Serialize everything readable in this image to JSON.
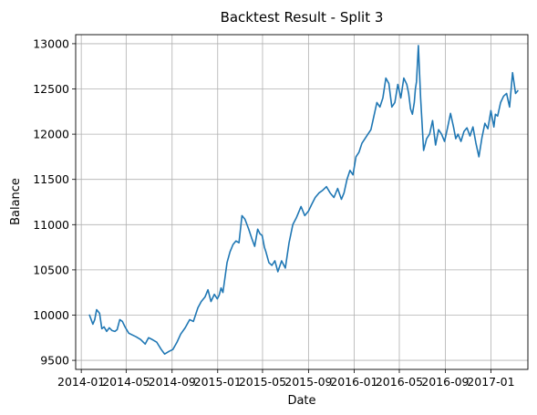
{
  "chart_data": {
    "type": "line",
    "title": "Backtest Result - Split 3",
    "xlabel": "Date",
    "ylabel": "Balance",
    "grid": true,
    "legend": "none",
    "xlim": [
      "2013-12-17",
      "2017-04-10"
    ],
    "ylim": [
      9400,
      13100
    ],
    "x_ticks": [
      "2014-01",
      "2014-05",
      "2014-09",
      "2015-01",
      "2015-05",
      "2015-09",
      "2016-01",
      "2016-05",
      "2016-09",
      "2017-01"
    ],
    "y_ticks": [
      9500,
      10000,
      10500,
      11000,
      11500,
      12000,
      12500,
      13000
    ],
    "series": [
      {
        "color": "#1f77b4",
        "x": [
          "2014-01-23",
          "2014-02-01",
          "2014-02-06",
          "2014-02-11",
          "2014-02-19",
          "2014-02-25",
          "2014-03-03",
          "2014-03-10",
          "2014-03-17",
          "2014-03-24",
          "2014-04-01",
          "2014-04-07",
          "2014-04-14",
          "2014-04-21",
          "2014-04-28",
          "2014-05-08",
          "2014-05-18",
          "2014-05-28",
          "2014-06-09",
          "2014-06-21",
          "2014-06-30",
          "2014-07-10",
          "2014-07-22",
          "2014-08-03",
          "2014-08-12",
          "2014-08-24",
          "2014-09-03",
          "2014-09-14",
          "2014-09-24",
          "2014-10-06",
          "2014-10-18",
          "2014-10-28",
          "2014-11-09",
          "2014-11-18",
          "2014-11-28",
          "2014-12-06",
          "2014-12-14",
          "2014-12-23",
          "2014-12-31",
          "2015-01-05",
          "2015-01-10",
          "2015-01-15",
          "2015-01-20",
          "2015-01-26",
          "2015-02-03",
          "2015-02-11",
          "2015-02-19",
          "2015-02-27",
          "2015-03-07",
          "2015-03-15",
          "2015-03-25",
          "2015-04-02",
          "2015-04-10",
          "2015-04-18",
          "2015-04-24",
          "2015-04-30",
          "2015-05-06",
          "2015-05-10",
          "2015-05-18",
          "2015-05-26",
          "2015-06-03",
          "2015-06-11",
          "2015-06-21",
          "2015-07-01",
          "2015-07-11",
          "2015-07-21",
          "2015-07-31",
          "2015-08-12",
          "2015-08-22",
          "2015-09-01",
          "2015-09-09",
          "2015-09-19",
          "2015-09-29",
          "2015-10-09",
          "2015-10-19",
          "2015-10-29",
          "2015-11-08",
          "2015-11-18",
          "2015-11-28",
          "2015-12-05",
          "2015-12-13",
          "2015-12-21",
          "2015-12-29",
          "2016-01-06",
          "2016-01-14",
          "2016-01-22",
          "2016-01-30",
          "2016-02-07",
          "2016-02-15",
          "2016-02-23",
          "2016-03-02",
          "2016-03-10",
          "2016-03-18",
          "2016-03-26",
          "2016-04-03",
          "2016-04-11",
          "2016-04-19",
          "2016-04-27",
          "2016-05-05",
          "2016-05-13",
          "2016-05-21",
          "2016-05-26",
          "2016-05-31",
          "2016-06-05",
          "2016-06-10",
          "2016-06-13",
          "2016-06-16",
          "2016-06-21",
          "2016-06-27",
          "2016-07-05",
          "2016-07-13",
          "2016-07-21",
          "2016-07-29",
          "2016-08-06",
          "2016-08-14",
          "2016-08-22",
          "2016-08-30",
          "2016-09-07",
          "2016-09-15",
          "2016-09-23",
          "2016-09-29",
          "2016-10-05",
          "2016-10-13",
          "2016-10-21",
          "2016-10-29",
          "2016-11-06",
          "2016-11-14",
          "2016-11-22",
          "2016-11-30",
          "2016-12-08",
          "2016-12-16",
          "2016-12-24",
          "2017-01-01",
          "2017-01-05",
          "2017-01-09",
          "2017-01-13",
          "2017-01-19",
          "2017-01-27",
          "2017-02-04",
          "2017-02-12",
          "2017-02-20",
          "2017-02-28",
          "2017-03-08",
          "2017-03-14"
        ],
        "values": [
          10000,
          9900,
          9950,
          10060,
          10020,
          9850,
          9870,
          9820,
          9860,
          9830,
          9820,
          9840,
          9950,
          9930,
          9870,
          9800,
          9780,
          9760,
          9730,
          9680,
          9750,
          9730,
          9700,
          9620,
          9570,
          9600,
          9620,
          9700,
          9790,
          9860,
          9950,
          9930,
          10080,
          10150,
          10200,
          10280,
          10150,
          10230,
          10180,
          10220,
          10300,
          10250,
          10400,
          10580,
          10700,
          10780,
          10820,
          10800,
          11100,
          11060,
          10950,
          10850,
          10760,
          10950,
          10900,
          10880,
          10750,
          10700,
          10580,
          10550,
          10600,
          10480,
          10600,
          10520,
          10800,
          11000,
          11080,
          11200,
          11100,
          11150,
          11220,
          11300,
          11350,
          11380,
          11420,
          11350,
          11300,
          11400,
          11280,
          11350,
          11500,
          11600,
          11550,
          11750,
          11800,
          11900,
          11950,
          12000,
          12050,
          12200,
          12350,
          12300,
          12400,
          12620,
          12560,
          12300,
          12350,
          12550,
          12400,
          12620,
          12550,
          12450,
          12280,
          12220,
          12350,
          12500,
          12580,
          12980,
          12400,
          11820,
          11950,
          12000,
          12150,
          11880,
          12050,
          12000,
          11920,
          12070,
          12230,
          12080,
          11950,
          12000,
          11920,
          12030,
          12070,
          11980,
          12080,
          11900,
          11750,
          11960,
          12120,
          12060,
          12260,
          12170,
          12080,
          12220,
          12200,
          12350,
          12420,
          12450,
          12300,
          12680,
          12450,
          12480
        ]
      }
    ]
  }
}
